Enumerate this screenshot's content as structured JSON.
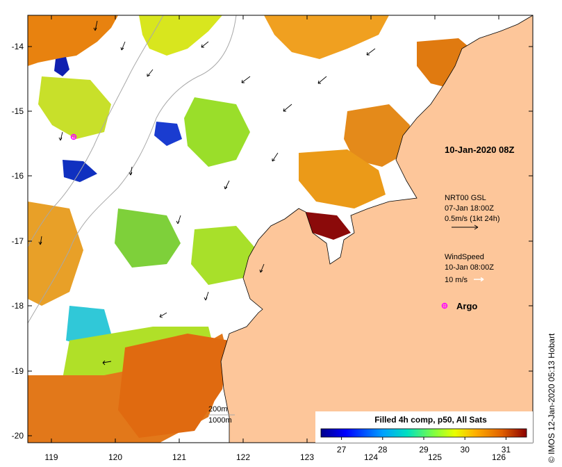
{
  "map": {
    "lon_ticks": [
      "119",
      "120",
      "121",
      "122",
      "123",
      "124",
      "125",
      "126"
    ],
    "lat_ticks": [
      "-14",
      "-15",
      "-16",
      "-17",
      "-18",
      "-19",
      "-20"
    ],
    "lon_range": [
      118.65,
      126.7
    ],
    "lat_range": [
      -20.1,
      -13.5
    ]
  },
  "annotations": {
    "date_title": "10-Jan-2020 08Z",
    "current_source": "NRT00 GSL",
    "current_time": "07-Jan 18:00Z",
    "current_scale": "0.5m/s (1kt 24h)",
    "wind_label": "WindSpeed",
    "wind_time": "10-Jan 08:00Z",
    "wind_scale": "10 m/s",
    "argo_label": "Argo"
  },
  "depth_legend": {
    "contour_1": "200m",
    "contour_2": "1000m"
  },
  "colorbar": {
    "title": "Filled 4h comp, p50, All Sats",
    "tick_labels": [
      "27",
      "28",
      "29",
      "30",
      "31"
    ],
    "min": 26.5,
    "max": 31.5
  },
  "credit": "© IMOS 12-Jan-2020 05:13 Hobart",
  "colors": {
    "land": "#fdc69a",
    "frame": "#000000",
    "bathy": "#a8a8a8",
    "argo": "#ff00ff"
  }
}
